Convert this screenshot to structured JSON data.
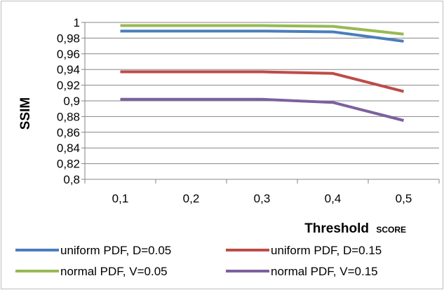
{
  "chart_data": {
    "type": "line",
    "title": "",
    "xlabel_main": "Threshold",
    "xlabel_sub": "SCORE",
    "ylabel": "SSIM",
    "categories": [
      "0,1",
      "0,2",
      "0,3",
      "0,4",
      "0,5"
    ],
    "x": [
      0.1,
      0.2,
      0.3,
      0.4,
      0.5
    ],
    "ylim": [
      0.8,
      1.0
    ],
    "yticks": [
      0.8,
      0.82,
      0.84,
      0.86,
      0.88,
      0.9,
      0.92,
      0.94,
      0.96,
      0.98,
      1.0
    ],
    "ytick_labels": [
      "0,8",
      "0,82",
      "0,84",
      "0,86",
      "0,88",
      "0,9",
      "0,92",
      "0,94",
      "0,96",
      "0,98",
      "1"
    ],
    "grid": true,
    "legend_position": "bottom",
    "series": [
      {
        "name": "uniform PDF, D=0.05",
        "color": "#4a7ebb",
        "values": [
          0.989,
          0.989,
          0.989,
          0.988,
          0.976
        ]
      },
      {
        "name": "uniform PDF, D=0.15",
        "color": "#be4b48",
        "values": [
          0.937,
          0.937,
          0.937,
          0.935,
          0.912
        ]
      },
      {
        "name": "normal PDF, V=0.05",
        "color": "#98b954",
        "values": [
          0.996,
          0.996,
          0.996,
          0.995,
          0.985
        ]
      },
      {
        "name": "normal PDF, V=0.15",
        "color": "#7d60a0",
        "values": [
          0.902,
          0.902,
          0.902,
          0.898,
          0.875
        ]
      }
    ]
  }
}
